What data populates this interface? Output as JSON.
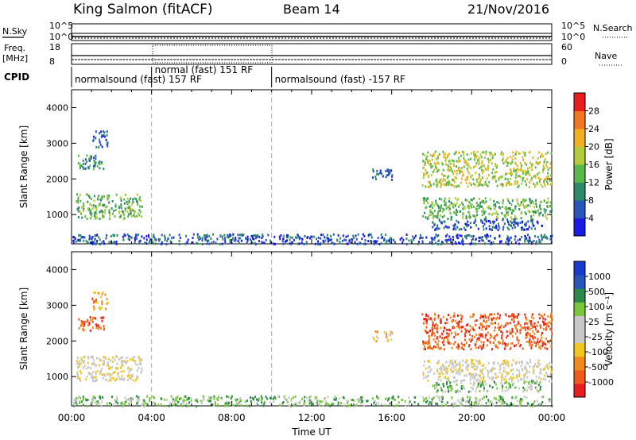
{
  "header": {
    "site": "King Salmon (fitACF)",
    "beam": "Beam 14",
    "date": "21/Nov/2016"
  },
  "strips": {
    "nsky_label": "N.Sky",
    "nsky_ticks": [
      "10^5",
      "10^0"
    ],
    "nsearch_label": "N.Search",
    "nsearch_ticks": [
      "10^5",
      "10^0"
    ],
    "freq_label_1": "Freq.",
    "freq_label_2": "[MHz]",
    "freq_ticks": [
      "18",
      "8"
    ],
    "nave_label": "Nave",
    "nave_ticks": [
      "60",
      "0"
    ],
    "cpid_label": "CPID"
  },
  "cpid_segments": [
    {
      "label": "normalsound (fast) 157 RF",
      "start_h": 0,
      "end_h": 4
    },
    {
      "label": "normal (fast) 151 RF",
      "start_h": 4,
      "end_h": 10
    },
    {
      "label": "normalsound (fast) -157 RF",
      "start_h": 10,
      "end_h": 24
    }
  ],
  "chart_data": [
    {
      "type": "heatmap",
      "title": "",
      "xlabel": "",
      "ylabel": "Slant Range [km]",
      "xlim": [
        0,
        24
      ],
      "ylim": [
        180,
        4500
      ],
      "yticks": [
        1000,
        2000,
        3000,
        4000
      ],
      "colorbar": {
        "label": "Power [dB]",
        "ticks": [
          "4",
          "8",
          "12",
          "16",
          "20",
          "24",
          "28"
        ],
        "colors": [
          "#1a1ae6",
          "#2855b8",
          "#2e8a6a",
          "#58b84a",
          "#b4cc3c",
          "#f0b020",
          "#f07820",
          "#e81e1e"
        ]
      },
      "echo_regions": [
        {
          "t": [
            0.2,
            3.5
          ],
          "r": [
            900,
            1600
          ],
          "level": 3
        },
        {
          "t": [
            0.3,
            1.6
          ],
          "r": [
            2300,
            2700
          ],
          "level": 2
        },
        {
          "t": [
            1.0,
            1.8
          ],
          "r": [
            2900,
            3400
          ],
          "level": 1
        },
        {
          "t": [
            0.0,
            24.0
          ],
          "r": [
            200,
            480
          ],
          "level": 1
        },
        {
          "t": [
            17.5,
            24.0
          ],
          "r": [
            1800,
            2800
          ],
          "level": 4
        },
        {
          "t": [
            17.5,
            24.0
          ],
          "r": [
            900,
            1500
          ],
          "level": 3
        },
        {
          "t": [
            18.0,
            23.5
          ],
          "r": [
            600,
            900
          ],
          "level": 1
        },
        {
          "t": [
            15.0,
            16.0
          ],
          "r": [
            2000,
            2300
          ],
          "level": 1
        }
      ]
    },
    {
      "type": "heatmap",
      "title": "",
      "xlabel": "Time UT",
      "ylabel": "Slant Range [km]",
      "xlim": [
        0,
        24
      ],
      "ylim": [
        180,
        4500
      ],
      "yticks": [
        1000,
        2000,
        3000,
        4000
      ],
      "xticks": [
        "00:00",
        "04:00",
        "08:00",
        "12:00",
        "16:00",
        "20:00",
        "00:00"
      ],
      "colorbar": {
        "label": "Velocity [m s⁻¹]",
        "ticks": [
          "1000",
          "500",
          "100",
          "25",
          "-25",
          "-100",
          "-500",
          "-1000"
        ],
        "colors": [
          "#e81e1e",
          "#f05a1e",
          "#f08a1e",
          "#f0c820",
          "#c8c8c8",
          "#c8c8c8",
          "#78c83c",
          "#2e8a4a",
          "#2855b8",
          "#1a3acc"
        ]
      },
      "echo_regions": [
        {
          "t": [
            0.2,
            3.5
          ],
          "r": [
            900,
            1600
          ],
          "level": 4
        },
        {
          "t": [
            0.3,
            1.6
          ],
          "r": [
            2300,
            2700
          ],
          "level": 1
        },
        {
          "t": [
            1.0,
            1.8
          ],
          "r": [
            2900,
            3400
          ],
          "level": 2
        },
        {
          "t": [
            0.0,
            24.0
          ],
          "r": [
            200,
            480
          ],
          "level": 6
        },
        {
          "t": [
            17.5,
            24.0
          ],
          "r": [
            1800,
            2800
          ],
          "level": 1
        },
        {
          "t": [
            17.5,
            24.0
          ],
          "r": [
            900,
            1500
          ],
          "level": 4
        },
        {
          "t": [
            18.0,
            23.5
          ],
          "r": [
            600,
            900
          ],
          "level": 6
        },
        {
          "t": [
            15.0,
            16.0
          ],
          "r": [
            2000,
            2300
          ],
          "level": 3
        }
      ]
    }
  ]
}
